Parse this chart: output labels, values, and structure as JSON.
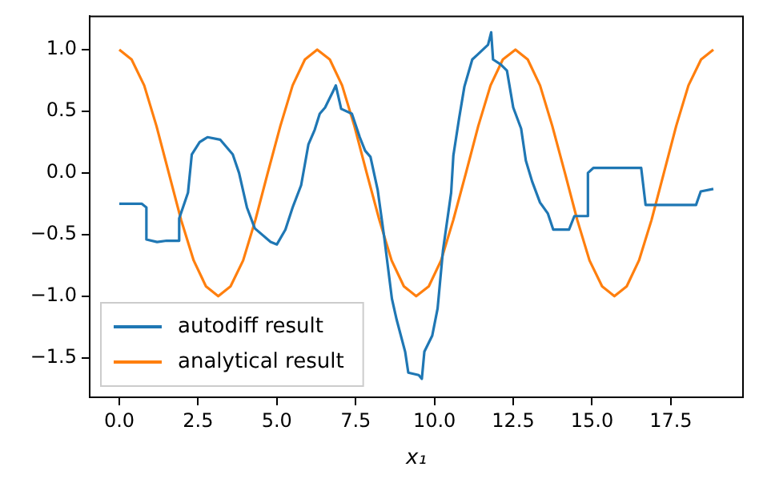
{
  "chart_data": {
    "type": "line",
    "xlabel": "x₁",
    "xlim": [
      -0.94,
      19.79
    ],
    "ylim": [
      -1.82,
      1.27
    ],
    "xticks": [
      {
        "value": 0,
        "label": "0.0"
      },
      {
        "value": 2.5,
        "label": "2.5"
      },
      {
        "value": 5,
        "label": "5.0"
      },
      {
        "value": 7.5,
        "label": "7.5"
      },
      {
        "value": 10,
        "label": "10.0"
      },
      {
        "value": 12.5,
        "label": "12.5"
      },
      {
        "value": 15,
        "label": "15.0"
      },
      {
        "value": 17.5,
        "label": "17.5"
      }
    ],
    "yticks": [
      {
        "value": -1.5,
        "label": "−1.5"
      },
      {
        "value": -1,
        "label": "−1.0"
      },
      {
        "value": -0.5,
        "label": "−0.5"
      },
      {
        "value": 0,
        "label": "0.0"
      },
      {
        "value": 0.5,
        "label": "0.5"
      },
      {
        "value": 1,
        "label": "1.0"
      }
    ],
    "grid": false,
    "legend": "bottom left",
    "marker": "none",
    "line_style": "solid",
    "series": [
      {
        "name": "autodiff result",
        "color": "#1f77b4",
        "x": [
          0,
          0.71,
          0.86,
          0.86,
          1.2,
          1.5,
          1.9,
          1.9,
          2.18,
          2.3,
          2.55,
          2.8,
          3.2,
          3.6,
          3.8,
          4.05,
          4.3,
          4.8,
          5.0,
          5.27,
          5.5,
          5.77,
          6.0,
          6.2,
          6.36,
          6.53,
          6.78,
          6.87,
          7.04,
          7.38,
          7.63,
          7.8,
          7.97,
          8.2,
          8.4,
          8.65,
          8.8,
          9.07,
          9.17,
          9.5,
          9.6,
          9.68,
          9.93,
          10.1,
          10.27,
          10.53,
          10.6,
          10.78,
          10.95,
          11.2,
          11.37,
          11.7,
          11.8,
          11.86,
          12.1,
          12.3,
          12.5,
          12.75,
          12.9,
          13.1,
          13.35,
          13.6,
          13.77,
          14.27,
          14.44,
          14.87,
          14.87,
          15.04,
          16.56,
          16.7,
          18.3,
          18.45,
          18.85
        ],
        "values": [
          -0.25,
          -0.25,
          -0.28,
          -0.54,
          -0.56,
          -0.55,
          -0.55,
          -0.37,
          -0.16,
          0.15,
          0.25,
          0.29,
          0.27,
          0.15,
          0.0,
          -0.28,
          -0.45,
          -0.56,
          -0.58,
          -0.46,
          -0.28,
          -0.1,
          0.23,
          0.35,
          0.48,
          0.53,
          0.66,
          0.71,
          0.52,
          0.48,
          0.29,
          0.18,
          0.13,
          -0.14,
          -0.51,
          -1.02,
          -1.19,
          -1.45,
          -1.62,
          -1.64,
          -1.67,
          -1.45,
          -1.32,
          -1.1,
          -0.63,
          -0.16,
          0.14,
          0.44,
          0.7,
          0.92,
          0.96,
          1.04,
          1.14,
          0.92,
          0.88,
          0.83,
          0.53,
          0.36,
          0.1,
          -0.07,
          -0.24,
          -0.33,
          -0.46,
          -0.46,
          -0.35,
          -0.35,
          0.0,
          0.04,
          0.04,
          -0.26,
          -0.26,
          -0.15,
          -0.13
        ]
      },
      {
        "name": "analytical result",
        "color": "#ff7f0e",
        "x": [
          0,
          0.39,
          0.79,
          1.18,
          1.57,
          1.96,
          2.36,
          2.75,
          3.14,
          3.53,
          3.93,
          4.32,
          4.71,
          5.11,
          5.5,
          5.89,
          6.28,
          6.68,
          7.07,
          7.46,
          7.85,
          8.25,
          8.64,
          9.03,
          9.42,
          9.82,
          10.21,
          10.6,
          11.0,
          11.39,
          11.78,
          12.17,
          12.57,
          12.96,
          13.35,
          13.74,
          14.14,
          14.53,
          14.92,
          15.32,
          15.71,
          16.1,
          16.49,
          16.89,
          17.28,
          17.67,
          18.06,
          18.46,
          18.85
        ],
        "values": [
          1,
          0.92,
          0.71,
          0.38,
          0,
          -0.38,
          -0.71,
          -0.92,
          -1,
          -0.92,
          -0.71,
          -0.38,
          0,
          0.38,
          0.71,
          0.92,
          1,
          0.92,
          0.71,
          0.38,
          0,
          -0.38,
          -0.71,
          -0.92,
          -1,
          -0.92,
          -0.71,
          -0.38,
          0,
          0.38,
          0.71,
          0.92,
          1,
          0.92,
          0.71,
          0.38,
          0,
          -0.38,
          -0.71,
          -0.92,
          -1,
          -0.92,
          -0.71,
          -0.38,
          0,
          0.38,
          0.71,
          0.92,
          1
        ]
      }
    ]
  }
}
